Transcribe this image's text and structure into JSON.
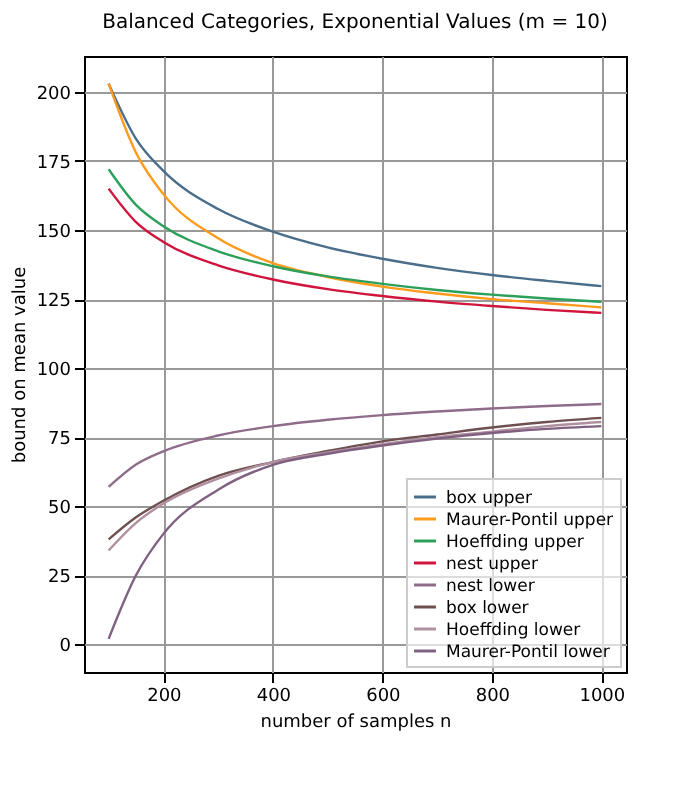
{
  "chart_data": {
    "type": "line",
    "title": "Balanced Categories, Exponential Values (m = 10)",
    "xlabel": "number of samples n",
    "ylabel": "bound on mean value",
    "x": [
      100,
      150,
      200,
      300,
      400,
      500,
      600,
      700,
      800,
      900,
      1000
    ],
    "series": [
      {
        "name": "box upper",
        "color": "#4a6e8a",
        "values": [
          203,
          183,
          171.4,
          157.6,
          149.4,
          143.7,
          139.6,
          136.3,
          133.7,
          131.6,
          129.7
        ]
      },
      {
        "name": "Maurer-Pontil upper",
        "color": "#ff9a1a",
        "values": [
          203,
          178,
          163,
          147,
          138,
          133,
          129.5,
          127,
          125,
          123.5,
          122
        ]
      },
      {
        "name": "Hoeffding upper",
        "color": "#2ca05a",
        "values": [
          172,
          159.1,
          151.4,
          142.3,
          136.9,
          133.2,
          130.5,
          128.3,
          126.6,
          125.2,
          124
        ]
      },
      {
        "name": "nest upper",
        "color": "#d0143c",
        "values": [
          165,
          152.9,
          145.7,
          137.2,
          132.1,
          128.6,
          126.1,
          124.1,
          122.5,
          121.1,
          120
        ]
      },
      {
        "name": "nest lower",
        "color": "#8e6c8a",
        "values": [
          57,
          65.1,
          69.9,
          75.6,
          79,
          81.3,
          83,
          84.3,
          85.4,
          86.3,
          87
        ]
      },
      {
        "name": "box lower",
        "color": "#6e5050",
        "values": [
          38,
          46,
          52,
          61,
          66,
          70,
          73.5,
          76,
          78.5,
          80.5,
          82
        ]
      },
      {
        "name": "Hoeffding lower",
        "color": "#b090a0",
        "values": [
          34,
          44,
          51,
          60,
          66,
          69.5,
          72.5,
          75,
          77,
          79,
          80.5
        ]
      },
      {
        "name": "Maurer-Pontil lower",
        "color": "#806080",
        "values": [
          2,
          25,
          40,
          56,
          65,
          69,
          72,
          74.5,
          76.5,
          78,
          79
        ]
      }
    ],
    "xlim": [
      55,
      1045
    ],
    "ylim": [
      -10,
      213
    ],
    "xticks": [
      200,
      400,
      600,
      800,
      1000
    ],
    "yticks": [
      0,
      25,
      50,
      75,
      100,
      125,
      150,
      175,
      200
    ],
    "grid": true,
    "legend": "bottom right",
    "marker": "none",
    "line_style": "solid"
  }
}
